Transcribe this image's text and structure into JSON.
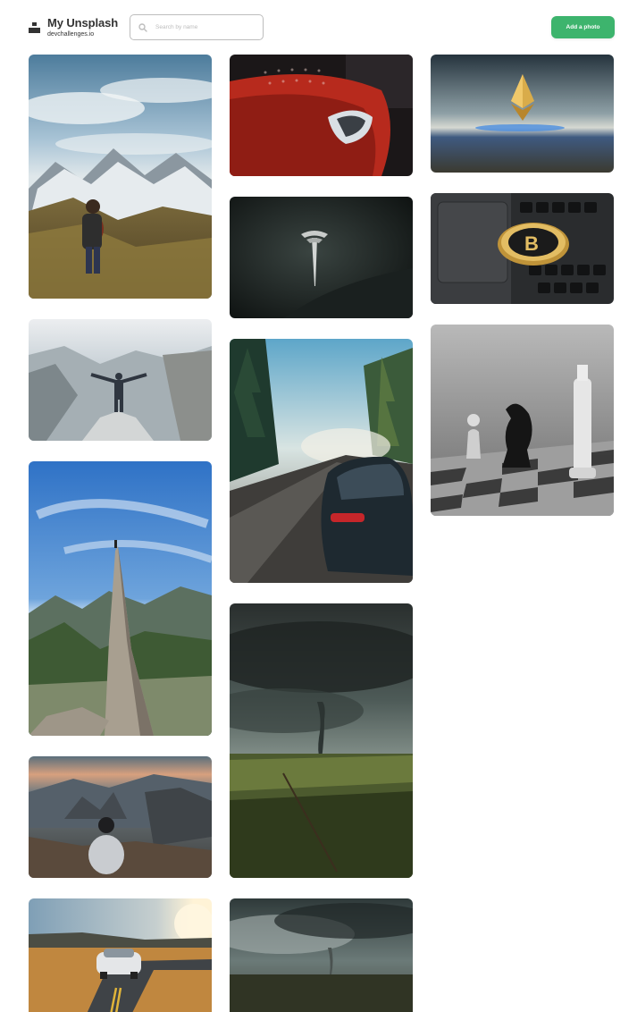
{
  "header": {
    "brand_title": "My Unsplash",
    "brand_subtitle": "devchallenges.io",
    "search_placeholder": "Search by name",
    "search_value": "",
    "add_button_label": "Add a photo"
  },
  "photos": [
    {
      "id": "hiker-mountains",
      "subject": "hiker overlooking mountain valley"
    },
    {
      "id": "man-canyon",
      "subject": "man with outstretched arms on canyon rock"
    },
    {
      "id": "climber-peak",
      "subject": "climber on rocky spire"
    },
    {
      "id": "man-cliff-sunset",
      "subject": "man sitting on cliff at dusk"
    },
    {
      "id": "car-road",
      "subject": "white sports car on winding road"
    },
    {
      "id": "red-tesla",
      "subject": "red Tesla headlight"
    },
    {
      "id": "tesla-logo",
      "subject": "Tesla logo on dark car"
    },
    {
      "id": "tesla-forest-road",
      "subject": "black Tesla on forest road"
    },
    {
      "id": "tornado-field",
      "subject": "tornado over green field"
    },
    {
      "id": "tornado-plains",
      "subject": "storm clouds and tornado over plains"
    },
    {
      "id": "ethereum",
      "subject": "ethereum symbol above water"
    },
    {
      "id": "bitcoin",
      "subject": "bitcoin coin on laptop keyboard"
    },
    {
      "id": "chess",
      "subject": "chess pieces on board"
    }
  ],
  "colors": {
    "accent": "#3db46d",
    "text": "#333333",
    "border": "#bdbdbd"
  }
}
